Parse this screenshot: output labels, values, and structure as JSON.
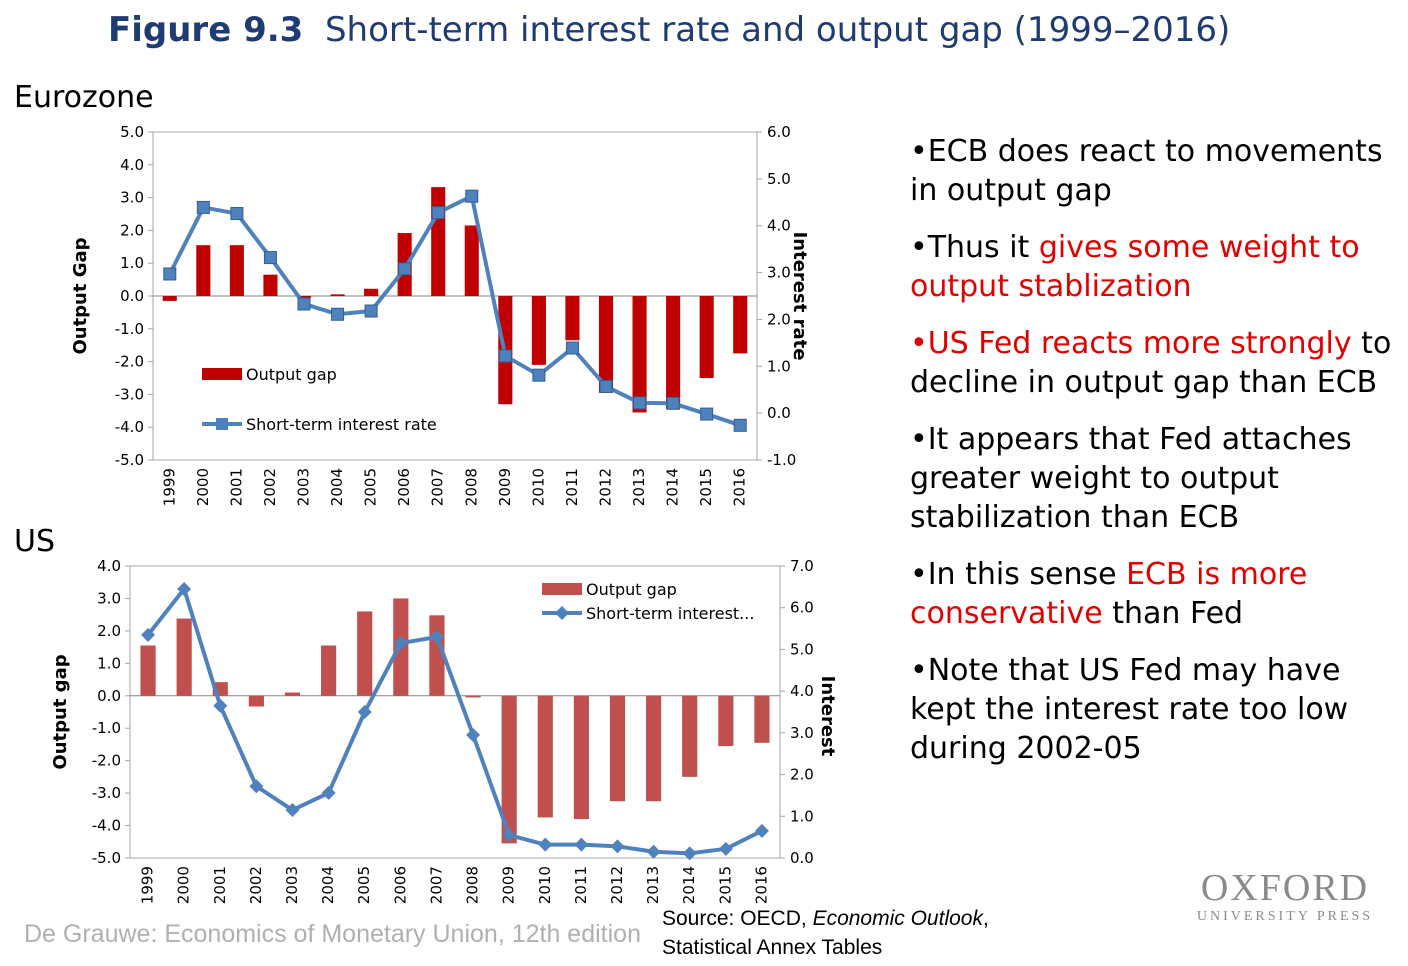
{
  "title": {
    "bold": "Figure 9.3",
    "rest": "Short-term interest rate and output gap (1999–2016)"
  },
  "sections": {
    "euro": "Eurozone",
    "us": "US"
  },
  "bullets": [
    [
      {
        "t": "•ECB does react to movements in output gap",
        "red": false
      }
    ],
    [
      {
        "t": "•Thus it ",
        "red": false
      },
      {
        "t": "gives some weight to output stablization",
        "red": true
      }
    ],
    [
      {
        "t": "•US Fed reacts more strongly",
        "red": true
      },
      {
        "t": " to decline in output gap than ECB",
        "red": false
      }
    ],
    [
      {
        "t": "•It appears that Fed attaches greater weight to output stabilization than ECB",
        "red": false
      }
    ],
    [
      {
        "t": "•In this sense ",
        "red": false
      },
      {
        "t": "ECB is more conservative",
        "red": true
      },
      {
        "t": " than Fed",
        "red": false
      }
    ],
    [
      {
        "t": "•Note that US Fed may have kept the interest rate too low during 2002-05",
        "red": false
      }
    ]
  ],
  "credit": "De Grauwe: Economics of Monetary Union, 12th edition",
  "source": {
    "line1_a": "Source:  OECD, ",
    "line1_b": "Economic Outlook",
    "line1_c": ",",
    "line2": "Statistical Annex Tables"
  },
  "logo": {
    "line1": "OXFORD",
    "line2": "UNIVERSITY PRESS"
  },
  "chart_data": [
    {
      "id": "euro",
      "type": "bar+line",
      "categories": [
        "1999",
        "2000",
        "2001",
        "2002",
        "2003",
        "2004",
        "2005",
        "2006",
        "2007",
        "2008",
        "2009",
        "2010",
        "2011",
        "2012",
        "2013",
        "2014",
        "2015",
        "2016"
      ],
      "ylabel": "Output Gap",
      "y2label": "Interest rate",
      "ylim": [
        -5,
        5
      ],
      "yticks": [
        "5.0",
        "4.0",
        "3.0",
        "2.0",
        "1.0",
        "0.0",
        "-1.0",
        "-2.0",
        "-3.0",
        "-4.0",
        "-5.0"
      ],
      "y2lim": [
        -1,
        6
      ],
      "y2ticks": [
        "6.0",
        "5.0",
        "4.0",
        "3.0",
        "2.0",
        "1.0",
        "0.0",
        "-1.0"
      ],
      "legend_position": "bottom-left",
      "bar_color": "#c00000",
      "line_color": "#4f81bd",
      "marker": "square",
      "series": [
        {
          "name": "Output gap",
          "kind": "bar",
          "values": [
            -0.15,
            1.55,
            1.55,
            0.65,
            -0.05,
            0.05,
            0.22,
            1.92,
            3.32,
            2.15,
            -3.3,
            -2.1,
            -1.35,
            -2.95,
            -3.55,
            -3.45,
            -2.5,
            -1.75
          ]
        },
        {
          "name": "Short-term interest rate",
          "kind": "line",
          "axis": "right",
          "values": [
            2.97,
            4.39,
            4.26,
            3.32,
            2.33,
            2.11,
            2.18,
            3.08,
            4.28,
            4.63,
            1.22,
            0.81,
            1.39,
            0.57,
            0.22,
            0.21,
            -0.02,
            -0.26
          ]
        }
      ]
    },
    {
      "id": "us",
      "type": "bar+line",
      "categories": [
        "1999",
        "2000",
        "2001",
        "2002",
        "2003",
        "2004",
        "2005",
        "2006",
        "2007",
        "2008",
        "2009",
        "2010",
        "2011",
        "2012",
        "2013",
        "2014",
        "2015",
        "2016"
      ],
      "ylabel": "Output gap",
      "y2label": "Interest",
      "ylim": [
        -5,
        4
      ],
      "yticks": [
        "4.0",
        "3.0",
        "2.0",
        "1.0",
        "0.0",
        "-1.0",
        "-2.0",
        "-3.0",
        "-4.0",
        "-5.0"
      ],
      "y2lim": [
        0,
        7
      ],
      "y2ticks": [
        "7.0",
        "6.0",
        "5.0",
        "4.0",
        "3.0",
        "2.0",
        "1.0",
        "0.0"
      ],
      "legend_position": "top-right",
      "bar_color": "#c0504d",
      "line_color": "#4f81bd",
      "marker": "diamond",
      "series": [
        {
          "name": "Output gap",
          "kind": "bar",
          "values": [
            1.55,
            2.38,
            0.42,
            -0.33,
            0.1,
            1.55,
            2.6,
            3.0,
            2.48,
            -0.05,
            -4.55,
            -3.75,
            -3.8,
            -3.25,
            -3.25,
            -2.5,
            -1.55,
            -1.45
          ]
        },
        {
          "name": "Short-term interest...",
          "kind": "line",
          "axis": "right",
          "values": [
            5.35,
            6.45,
            3.65,
            1.72,
            1.15,
            1.56,
            3.5,
            5.15,
            5.3,
            2.95,
            0.55,
            0.32,
            0.32,
            0.28,
            0.15,
            0.11,
            0.22,
            0.65
          ]
        }
      ]
    }
  ]
}
